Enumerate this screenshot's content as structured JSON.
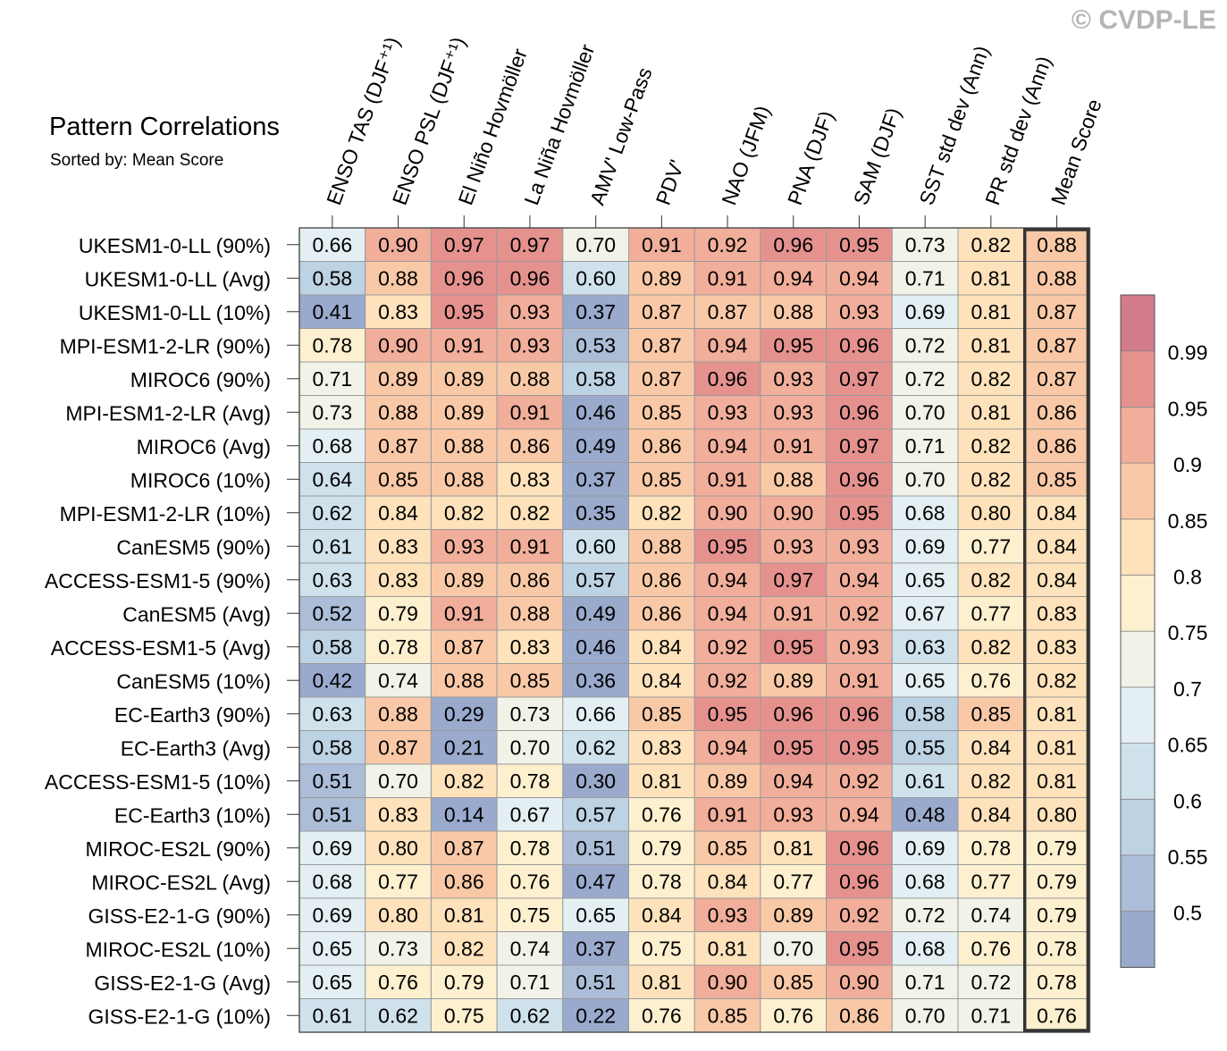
{
  "copyright": "© CVDP-LE",
  "chart_data": {
    "type": "heatmap",
    "title": "Pattern Correlations",
    "subtitle": "Sorted by: Mean Score",
    "columns": [
      "ENSO TAS (DJF⁺¹)",
      "ENSO PSL (DJF⁺¹)",
      "El Niño Hovmöller",
      "La Niña Hovmöller",
      "AMV' Low-Pass",
      "PDV'",
      "NAO (JFM)",
      "PNA (DJF)",
      "SAM (DJF)",
      "SST std dev (Ann)",
      "PR std dev (Ann)",
      "Mean Score"
    ],
    "rows": [
      "UKESM1-0-LL (90%)",
      "UKESM1-0-LL (Avg)",
      "UKESM1-0-LL (10%)",
      "MPI-ESM1-2-LR (90%)",
      "MIROC6 (90%)",
      "MPI-ESM1-2-LR (Avg)",
      "MIROC6 (Avg)",
      "MIROC6 (10%)",
      "MPI-ESM1-2-LR (10%)",
      "CanESM5 (90%)",
      "ACCESS-ESM1-5 (90%)",
      "CanESM5 (Avg)",
      "ACCESS-ESM1-5 (Avg)",
      "CanESM5 (10%)",
      "EC-Earth3 (90%)",
      "EC-Earth3 (Avg)",
      "ACCESS-ESM1-5 (10%)",
      "EC-Earth3 (10%)",
      "MIROC-ES2L (90%)",
      "MIROC-ES2L (Avg)",
      "GISS-E2-1-G (90%)",
      "MIROC-ES2L (10%)",
      "GISS-E2-1-G (Avg)",
      "GISS-E2-1-G (10%)"
    ],
    "values": [
      [
        "0.66",
        "0.90",
        "0.97",
        "0.97",
        "0.70",
        "0.91",
        "0.92",
        "0.96",
        "0.95",
        "0.73",
        "0.82",
        "0.88"
      ],
      [
        "0.58",
        "0.88",
        "0.96",
        "0.96",
        "0.60",
        "0.89",
        "0.91",
        "0.94",
        "0.94",
        "0.71",
        "0.81",
        "0.88"
      ],
      [
        "0.41",
        "0.83",
        "0.95",
        "0.93",
        "0.37",
        "0.87",
        "0.87",
        "0.88",
        "0.93",
        "0.69",
        "0.81",
        "0.87"
      ],
      [
        "0.78",
        "0.90",
        "0.91",
        "0.93",
        "0.53",
        "0.87",
        "0.94",
        "0.95",
        "0.96",
        "0.72",
        "0.81",
        "0.87"
      ],
      [
        "0.71",
        "0.89",
        "0.89",
        "0.88",
        "0.58",
        "0.87",
        "0.96",
        "0.93",
        "0.97",
        "0.72",
        "0.82",
        "0.87"
      ],
      [
        "0.73",
        "0.88",
        "0.89",
        "0.91",
        "0.46",
        "0.85",
        "0.93",
        "0.93",
        "0.96",
        "0.70",
        "0.81",
        "0.86"
      ],
      [
        "0.68",
        "0.87",
        "0.88",
        "0.86",
        "0.49",
        "0.86",
        "0.94",
        "0.91",
        "0.97",
        "0.71",
        "0.82",
        "0.86"
      ],
      [
        "0.64",
        "0.85",
        "0.88",
        "0.83",
        "0.37",
        "0.85",
        "0.91",
        "0.88",
        "0.96",
        "0.70",
        "0.82",
        "0.85"
      ],
      [
        "0.62",
        "0.84",
        "0.82",
        "0.82",
        "0.35",
        "0.82",
        "0.90",
        "0.90",
        "0.95",
        "0.68",
        "0.80",
        "0.84"
      ],
      [
        "0.61",
        "0.83",
        "0.93",
        "0.91",
        "0.60",
        "0.88",
        "0.95",
        "0.93",
        "0.93",
        "0.69",
        "0.77",
        "0.84"
      ],
      [
        "0.63",
        "0.83",
        "0.89",
        "0.86",
        "0.57",
        "0.86",
        "0.94",
        "0.97",
        "0.94",
        "0.65",
        "0.82",
        "0.84"
      ],
      [
        "0.52",
        "0.79",
        "0.91",
        "0.88",
        "0.49",
        "0.86",
        "0.94",
        "0.91",
        "0.92",
        "0.67",
        "0.77",
        "0.83"
      ],
      [
        "0.58",
        "0.78",
        "0.87",
        "0.83",
        "0.46",
        "0.84",
        "0.92",
        "0.95",
        "0.93",
        "0.63",
        "0.82",
        "0.83"
      ],
      [
        "0.42",
        "0.74",
        "0.88",
        "0.85",
        "0.36",
        "0.84",
        "0.92",
        "0.89",
        "0.91",
        "0.65",
        "0.76",
        "0.82"
      ],
      [
        "0.63",
        "0.88",
        "0.29",
        "0.73",
        "0.66",
        "0.85",
        "0.95",
        "0.96",
        "0.96",
        "0.58",
        "0.85",
        "0.81"
      ],
      [
        "0.58",
        "0.87",
        "0.21",
        "0.70",
        "0.62",
        "0.83",
        "0.94",
        "0.95",
        "0.95",
        "0.55",
        "0.84",
        "0.81"
      ],
      [
        "0.51",
        "0.70",
        "0.82",
        "0.78",
        "0.30",
        "0.81",
        "0.89",
        "0.94",
        "0.92",
        "0.61",
        "0.82",
        "0.81"
      ],
      [
        "0.51",
        "0.83",
        "0.14",
        "0.67",
        "0.57",
        "0.76",
        "0.91",
        "0.93",
        "0.94",
        "0.48",
        "0.84",
        "0.80"
      ],
      [
        "0.69",
        "0.80",
        "0.87",
        "0.78",
        "0.51",
        "0.79",
        "0.85",
        "0.81",
        "0.96",
        "0.69",
        "0.78",
        "0.79"
      ],
      [
        "0.68",
        "0.77",
        "0.86",
        "0.76",
        "0.47",
        "0.78",
        "0.84",
        "0.77",
        "0.96",
        "0.68",
        "0.77",
        "0.79"
      ],
      [
        "0.69",
        "0.80",
        "0.81",
        "0.75",
        "0.65",
        "0.84",
        "0.93",
        "0.89",
        "0.92",
        "0.72",
        "0.74",
        "0.79"
      ],
      [
        "0.65",
        "0.73",
        "0.82",
        "0.74",
        "0.37",
        "0.75",
        "0.81",
        "0.70",
        "0.95",
        "0.68",
        "0.76",
        "0.78"
      ],
      [
        "0.65",
        "0.76",
        "0.79",
        "0.71",
        "0.51",
        "0.81",
        "0.90",
        "0.85",
        "0.90",
        "0.71",
        "0.72",
        "0.78"
      ],
      [
        "0.61",
        "0.62",
        "0.75",
        "0.62",
        "0.22",
        "0.76",
        "0.85",
        "0.76",
        "0.86",
        "0.70",
        "0.71",
        "0.76"
      ]
    ],
    "colorbar": {
      "levels": [
        0.5,
        0.55,
        0.6,
        0.65,
        0.7,
        0.75,
        0.8,
        0.85,
        0.9,
        0.95,
        0.99
      ],
      "labels": [
        "0.5",
        "0.55",
        "0.6",
        "0.65",
        "0.7",
        "0.75",
        "0.8",
        "0.85",
        "0.9",
        "0.95",
        "0.99"
      ],
      "colors": [
        "#9aaacd",
        "#acbdd8",
        "#bdd2e3",
        "#cfe2ec",
        "#e3eff3",
        "#f2f3e8",
        "#fdf0cf",
        "#fde2bb",
        "#f9c9a7",
        "#f1ae9b",
        "#e5928f",
        "#d27b8c"
      ]
    }
  }
}
